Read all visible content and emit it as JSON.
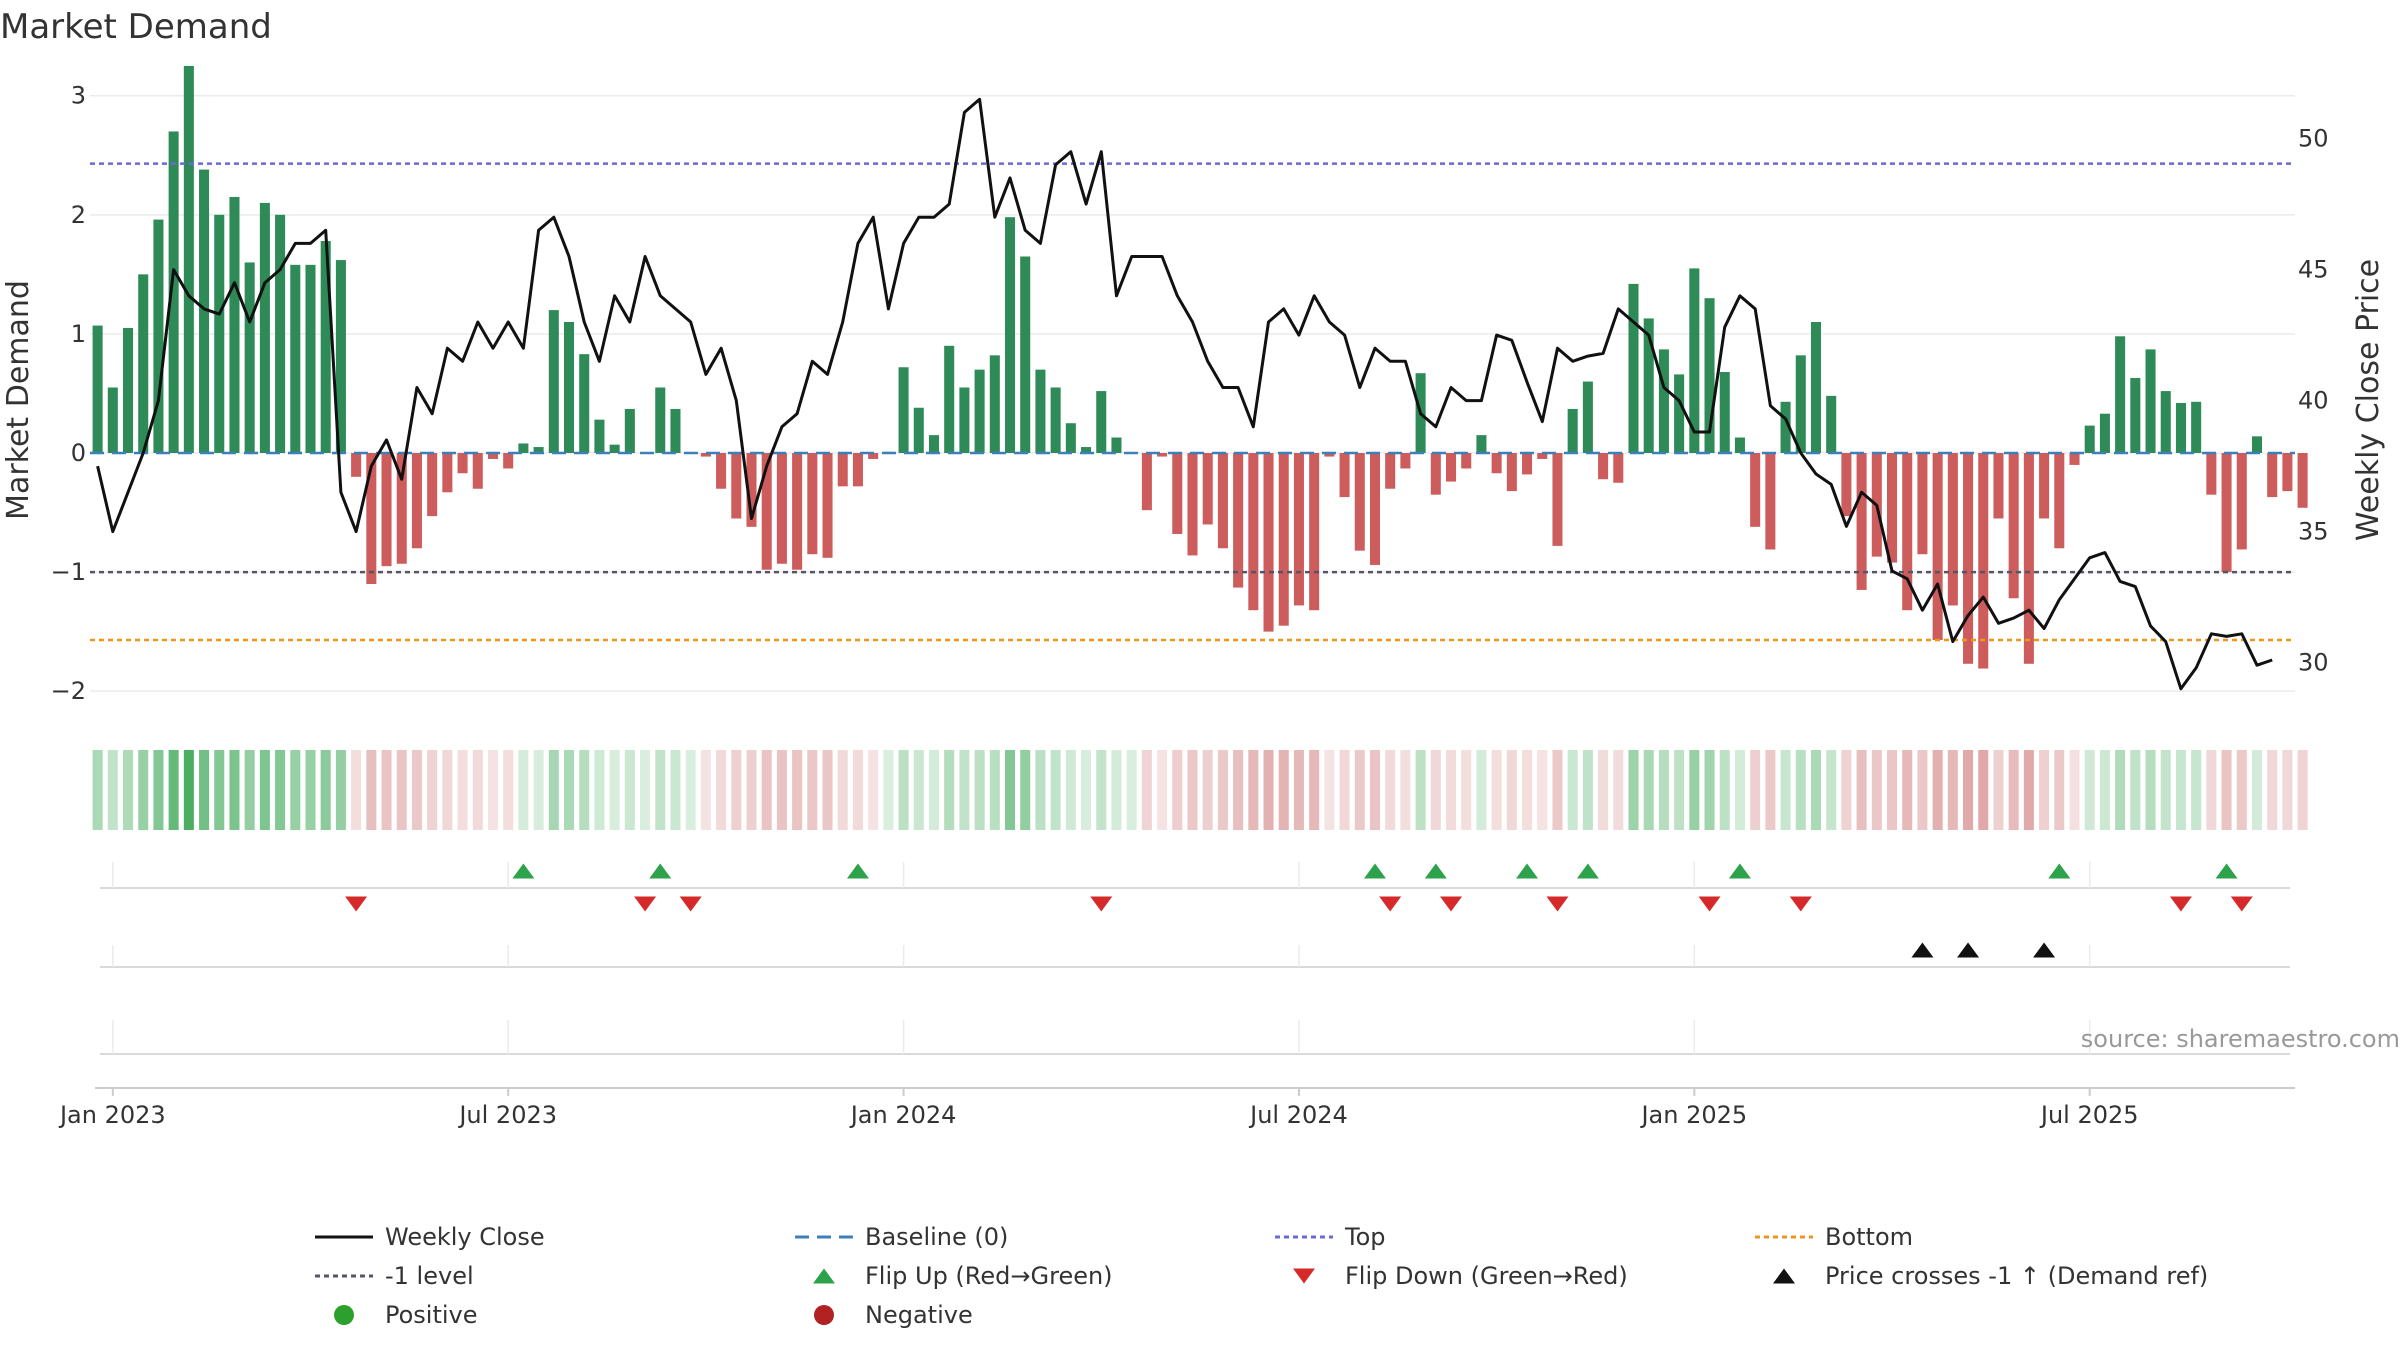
{
  "chart_data": {
    "type": "bar+line",
    "title": "Market Demand",
    "ylabel_left": "Market Demand",
    "ylabel_right": "Weekly Close Price",
    "ylim_left": [
      -2.2,
      3.3
    ],
    "ylim_right": [
      28,
      53
    ],
    "yticks_left": [
      {
        "v": 3,
        "label": "3"
      },
      {
        "v": 2,
        "label": "2"
      },
      {
        "v": 1,
        "label": "1"
      },
      {
        "v": 0,
        "label": "0"
      },
      {
        "v": -1,
        "label": "−1"
      },
      {
        "v": -2,
        "label": "−2"
      }
    ],
    "yticks_right": [
      {
        "v": 50,
        "label": "50"
      },
      {
        "v": 45,
        "label": "45"
      },
      {
        "v": 40,
        "label": "40"
      },
      {
        "v": 35,
        "label": "35"
      },
      {
        "v": 30,
        "label": "30"
      }
    ],
    "reference_lines": {
      "top": 2.43,
      "baseline": 0,
      "minus_one": -1,
      "bottom": -1.57
    },
    "x_start": "2022-12-26",
    "week_count": 145,
    "xticks": [
      {
        "week": 1,
        "label": "Jan 2023"
      },
      {
        "week": 27,
        "label": "Jul 2023"
      },
      {
        "week": 53,
        "label": "Jan 2024"
      },
      {
        "week": 79,
        "label": "Jul 2024"
      },
      {
        "week": 105,
        "label": "Jan 2025"
      },
      {
        "week": 131,
        "label": "Jul 2025"
      }
    ],
    "market_demand": [
      1.07,
      0.55,
      1.05,
      1.5,
      1.96,
      2.7,
      3.25,
      2.38,
      2.0,
      2.15,
      1.6,
      2.1,
      2.0,
      1.58,
      1.58,
      1.78,
      1.62,
      -0.2,
      -1.1,
      -0.95,
      -0.93,
      -0.8,
      -0.53,
      -0.33,
      -0.17,
      -0.3,
      -0.05,
      -0.13,
      0.08,
      0.05,
      1.2,
      1.1,
      0.83,
      0.28,
      0.07,
      0.37,
      0.0,
      0.55,
      0.37,
      0.0,
      -0.03,
      -0.3,
      -0.55,
      -0.62,
      -0.98,
      -0.93,
      -0.98,
      -0.85,
      -0.88,
      -0.28,
      -0.28,
      -0.05,
      0.01,
      0.72,
      0.38,
      0.15,
      0.9,
      0.55,
      0.7,
      0.82,
      1.98,
      1.65,
      0.7,
      0.55,
      0.25,
      0.05,
      0.52,
      0.13,
      0.0,
      -0.48,
      -0.03,
      -0.68,
      -0.86,
      -0.6,
      -0.8,
      -1.13,
      -1.32,
      -1.5,
      -1.45,
      -1.28,
      -1.32,
      -0.03,
      -0.37,
      -0.82,
      -0.94,
      -0.3,
      -0.13,
      0.67,
      -0.35,
      -0.24,
      -0.13,
      0.15,
      -0.17,
      -0.32,
      -0.18,
      -0.05,
      -0.78,
      0.37,
      0.6,
      -0.22,
      -0.25,
      1.42,
      1.13,
      0.87,
      0.66,
      1.55,
      1.3,
      0.68,
      0.13,
      -0.62,
      -0.81,
      0.43,
      0.82,
      1.1,
      0.48,
      -0.53,
      -1.15,
      -0.87,
      -0.92,
      -1.32,
      -0.85,
      -1.57,
      -1.28,
      -1.77,
      -1.81,
      -0.55,
      -1.22,
      -1.77,
      -0.55,
      -0.8,
      -0.1,
      0.23,
      0.33,
      0.98,
      0.63,
      0.87,
      0.52,
      0.42,
      0.43,
      -0.35,
      -1.0,
      -0.81,
      0.14,
      -0.37,
      -0.32,
      -0.46
    ],
    "weekly_close": [
      37.5,
      35.0,
      36.5,
      38.0,
      40.0,
      45.0,
      44.0,
      43.5,
      43.3,
      44.5,
      43.0,
      44.5,
      45.0,
      46.0,
      46.0,
      46.5,
      36.5,
      35.0,
      37.5,
      38.5,
      37.0,
      40.5,
      39.5,
      42.0,
      41.5,
      43.0,
      42.0,
      43.0,
      42.0,
      46.5,
      47.0,
      45.5,
      43.0,
      41.5,
      44.0,
      43.0,
      45.5,
      44.0,
      43.5,
      43.0,
      41.0,
      42.0,
      40.0,
      35.5,
      37.5,
      39.0,
      39.5,
      41.5,
      41.0,
      43.0,
      46.0,
      47.0,
      43.5,
      46.0,
      47.0,
      47.0,
      47.5,
      51.0,
      51.5,
      47.0,
      48.5,
      46.5,
      46.0,
      49.0,
      49.5,
      47.5,
      49.5,
      44.0,
      45.5,
      45.5,
      45.5,
      44.0,
      43.0,
      41.5,
      40.5,
      40.5,
      39.0,
      43.0,
      43.5,
      42.5,
      44.0,
      43.0,
      42.5,
      40.5,
      42.0,
      41.5,
      41.5,
      39.5,
      39.0,
      40.5,
      40.0,
      40.0,
      42.5,
      42.3,
      40.7,
      39.2,
      42.0,
      41.5,
      41.7,
      41.8,
      43.5,
      43.0,
      42.5,
      40.5,
      40.0,
      38.8,
      38.8,
      42.8,
      44.0,
      43.5,
      39.8,
      39.3,
      38.0,
      37.2,
      36.8,
      35.2,
      36.5,
      36.0,
      33.5,
      33.2,
      32.0,
      33.0,
      30.8,
      31.8,
      32.5,
      31.5,
      31.7,
      32.0,
      31.3,
      32.4,
      33.2,
      34.0,
      34.2,
      33.1,
      32.9,
      31.4,
      30.8,
      29.0,
      29.8,
      31.1,
      31.0,
      31.1,
      29.9,
      30.1
    ],
    "flip_up_weeks": [
      28,
      37,
      50,
      84,
      88,
      94,
      98,
      108,
      129,
      140
    ],
    "flip_down_weeks": [
      17,
      36,
      39,
      66,
      85,
      89,
      96,
      106,
      112,
      137,
      141
    ],
    "price_cross_weeks": [
      120,
      123,
      128
    ],
    "source_text": "source: sharemaestro.com",
    "legend": [
      {
        "label": "Weekly Close",
        "symbol": "line-solid",
        "color": "#111111"
      },
      {
        "label": "Baseline (0)",
        "symbol": "line-dash",
        "color": "#3d7fb8"
      },
      {
        "label": "Top",
        "symbol": "line-dot",
        "color": "#6a6ad8"
      },
      {
        "label": "Bottom",
        "symbol": "line-dot",
        "color": "#f0961e"
      },
      {
        "label": "-1 level",
        "symbol": "line-dot",
        "color": "#555566"
      },
      {
        "label": "Flip Up (Red→Green)",
        "symbol": "triangle-up",
        "color": "#2ca24a"
      },
      {
        "label": "Flip Down (Green→Red)",
        "symbol": "triangle-down",
        "color": "#d62a2a"
      },
      {
        "label": "Price crosses -1 ↑ (Demand ref)",
        "symbol": "triangle-up",
        "color": "#111111"
      },
      {
        "label": "Positive",
        "symbol": "circle",
        "color": "#2ca02c"
      },
      {
        "label": "Negative",
        "symbol": "circle",
        "color": "#b22222"
      }
    ],
    "colors": {
      "positive_bar": "#2e8a57",
      "negative_bar": "#cd5c5c",
      "heat_positive": "#31a24c",
      "heat_negative": "#c86464",
      "grid": "#ebebeb",
      "axis": "#d9d9d9"
    }
  }
}
